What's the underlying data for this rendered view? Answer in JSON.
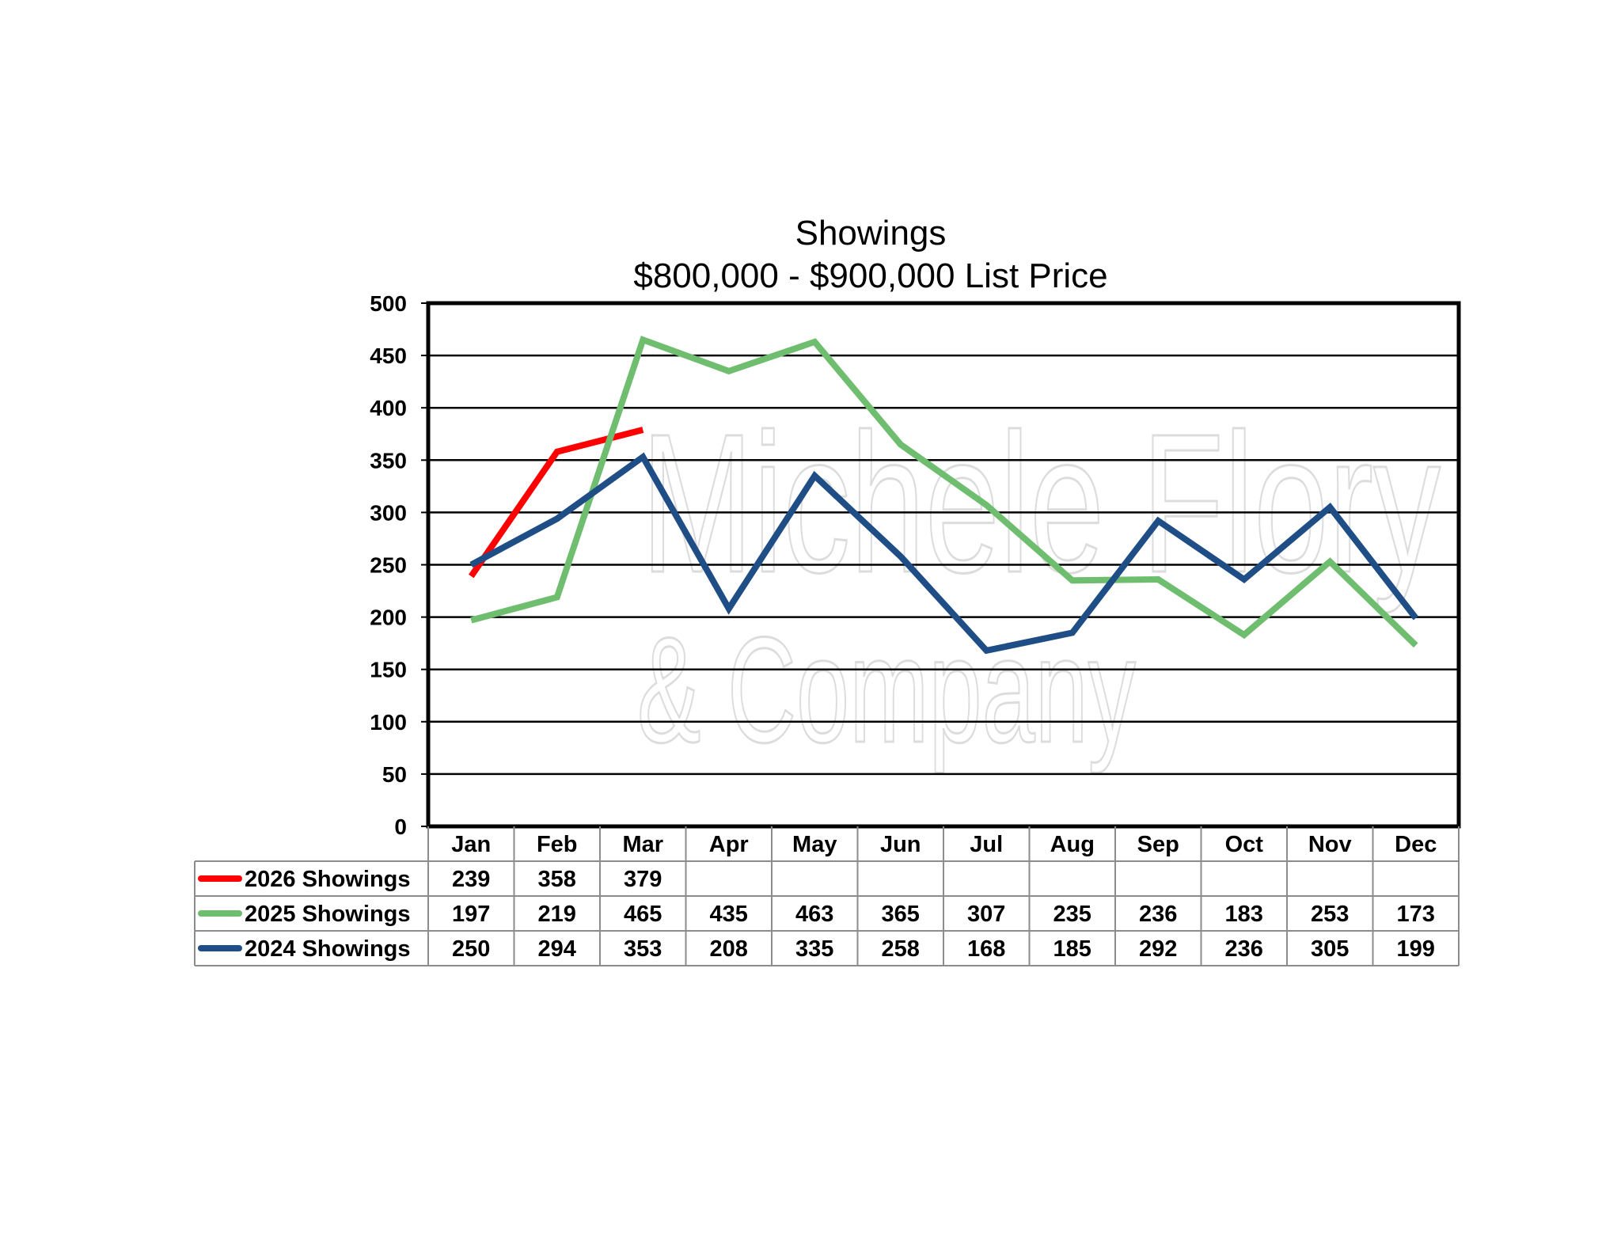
{
  "chart_data": {
    "type": "line",
    "title": "Showings",
    "subtitle": "$800,000 - $900,000 List Price",
    "categories": [
      "Jan",
      "Feb",
      "Mar",
      "Apr",
      "May",
      "Jun",
      "Jul",
      "Aug",
      "Sep",
      "Oct",
      "Nov",
      "Dec"
    ],
    "ylim": [
      0,
      500
    ],
    "yticks": [
      0,
      50,
      100,
      150,
      200,
      250,
      300,
      350,
      400,
      450,
      500
    ],
    "grid": true,
    "legend_placement": "data-table-left",
    "series": [
      {
        "name": "2026 Showings",
        "color": "#ff0000",
        "values": [
          239,
          358,
          379,
          null,
          null,
          null,
          null,
          null,
          null,
          null,
          null,
          null
        ]
      },
      {
        "name": "2025 Showings",
        "color": "#6fbe6f",
        "values": [
          197,
          219,
          465,
          435,
          463,
          365,
          307,
          235,
          236,
          183,
          253,
          173
        ]
      },
      {
        "name": "2024 Showings",
        "color": "#1f4e86",
        "values": [
          250,
          294,
          353,
          208,
          335,
          258,
          168,
          185,
          292,
          236,
          305,
          199
        ]
      }
    ]
  },
  "watermark": {
    "line1": "Michele Flory",
    "line2": "& Company"
  }
}
